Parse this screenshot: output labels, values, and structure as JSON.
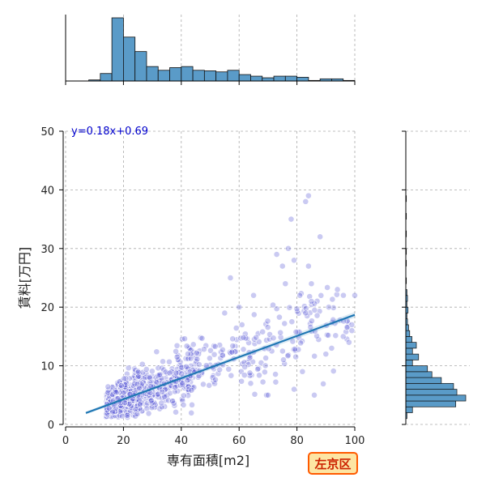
{
  "chart_data": {
    "type": "scatter",
    "xlabel": "専有面積[m2]",
    "ylabel": "賃料[万円]",
    "xlim": [
      0,
      100
    ],
    "ylim": [
      0,
      50
    ],
    "xticks": [
      "0",
      "20",
      "40",
      "60",
      "80",
      "100"
    ],
    "yticks": [
      "0",
      "10",
      "20",
      "30",
      "40",
      "50"
    ],
    "grid": true,
    "equation": "y=0.18x+0.69",
    "badge": "左京区",
    "regression": {
      "slope": 0.18,
      "intercept": 0.69,
      "x_range": [
        7,
        100
      ]
    },
    "colors": {
      "points": "#5b5bd6",
      "hist": "#5a9bc8",
      "line": "#1f77b4",
      "equation": "#0000cc",
      "badge_bg": "#fde5a3",
      "badge_border": "#ff5a00",
      "badge_text": "#cc2200"
    },
    "scatter_seed": 7,
    "scatter_count": 900,
    "outliers": [
      {
        "x": 84,
        "y": 39
      },
      {
        "x": 83,
        "y": 38
      },
      {
        "x": 78,
        "y": 35
      },
      {
        "x": 88,
        "y": 32
      },
      {
        "x": 77,
        "y": 30
      },
      {
        "x": 73,
        "y": 29
      },
      {
        "x": 79,
        "y": 28
      },
      {
        "x": 84,
        "y": 27
      },
      {
        "x": 75,
        "y": 27
      },
      {
        "x": 85,
        "y": 24
      },
      {
        "x": 81,
        "y": 22
      },
      {
        "x": 94,
        "y": 23
      },
      {
        "x": 100,
        "y": 22
      },
      {
        "x": 76,
        "y": 24
      },
      {
        "x": 65,
        "y": 22
      },
      {
        "x": 85,
        "y": 21
      },
      {
        "x": 91,
        "y": 20
      },
      {
        "x": 83,
        "y": 19
      },
      {
        "x": 99,
        "y": 16
      },
      {
        "x": 96,
        "y": 15
      },
      {
        "x": 99,
        "y": 17
      },
      {
        "x": 92,
        "y": 13
      },
      {
        "x": 86,
        "y": 5
      },
      {
        "x": 79,
        "y": 6
      },
      {
        "x": 70,
        "y": 5
      },
      {
        "x": 60,
        "y": 20
      },
      {
        "x": 57,
        "y": 25
      },
      {
        "x": 61,
        "y": 17
      },
      {
        "x": 64,
        "y": 7
      },
      {
        "x": 55,
        "y": 19
      },
      {
        "x": 90,
        "y": 12
      },
      {
        "x": 98,
        "y": 14
      }
    ],
    "top_histogram": {
      "bin_width": 4,
      "bins": [
        {
          "x0": 8,
          "count": 2
        },
        {
          "x0": 12,
          "count": 14
        },
        {
          "x0": 16,
          "count": 118
        },
        {
          "x0": 20,
          "count": 82
        },
        {
          "x0": 24,
          "count": 55
        },
        {
          "x0": 28,
          "count": 27
        },
        {
          "x0": 32,
          "count": 20
        },
        {
          "x0": 36,
          "count": 25
        },
        {
          "x0": 40,
          "count": 27
        },
        {
          "x0": 44,
          "count": 20
        },
        {
          "x0": 48,
          "count": 19
        },
        {
          "x0": 52,
          "count": 17
        },
        {
          "x0": 56,
          "count": 20
        },
        {
          "x0": 60,
          "count": 12
        },
        {
          "x0": 64,
          "count": 9
        },
        {
          "x0": 68,
          "count": 6
        },
        {
          "x0": 72,
          "count": 9
        },
        {
          "x0": 76,
          "count": 9
        },
        {
          "x0": 80,
          "count": 7
        },
        {
          "x0": 84,
          "count": 1
        },
        {
          "x0": 88,
          "count": 4
        },
        {
          "x0": 92,
          "count": 4
        },
        {
          "x0": 96,
          "count": 1
        }
      ]
    },
    "right_histogram": {
      "bin_width": 1,
      "bins": [
        {
          "y0": 1,
          "count": 2
        },
        {
          "y0": 2,
          "count": 12
        },
        {
          "y0": 3,
          "count": 90
        },
        {
          "y0": 4,
          "count": 108
        },
        {
          "y0": 5,
          "count": 92
        },
        {
          "y0": 6,
          "count": 86
        },
        {
          "y0": 7,
          "count": 64
        },
        {
          "y0": 8,
          "count": 47
        },
        {
          "y0": 9,
          "count": 39
        },
        {
          "y0": 10,
          "count": 12
        },
        {
          "y0": 11,
          "count": 23
        },
        {
          "y0": 12,
          "count": 12
        },
        {
          "y0": 13,
          "count": 19
        },
        {
          "y0": 14,
          "count": 11
        },
        {
          "y0": 15,
          "count": 7
        },
        {
          "y0": 16,
          "count": 5
        },
        {
          "y0": 17,
          "count": 3
        },
        {
          "y0": 18,
          "count": 2
        },
        {
          "y0": 19,
          "count": 4
        },
        {
          "y0": 20,
          "count": 2
        },
        {
          "y0": 21,
          "count": 3
        },
        {
          "y0": 22,
          "count": 2
        },
        {
          "y0": 24,
          "count": 1
        },
        {
          "y0": 27,
          "count": 1
        },
        {
          "y0": 29,
          "count": 1
        },
        {
          "y0": 32,
          "count": 1
        },
        {
          "y0": 35,
          "count": 1
        },
        {
          "y0": 38,
          "count": 1
        }
      ]
    }
  }
}
